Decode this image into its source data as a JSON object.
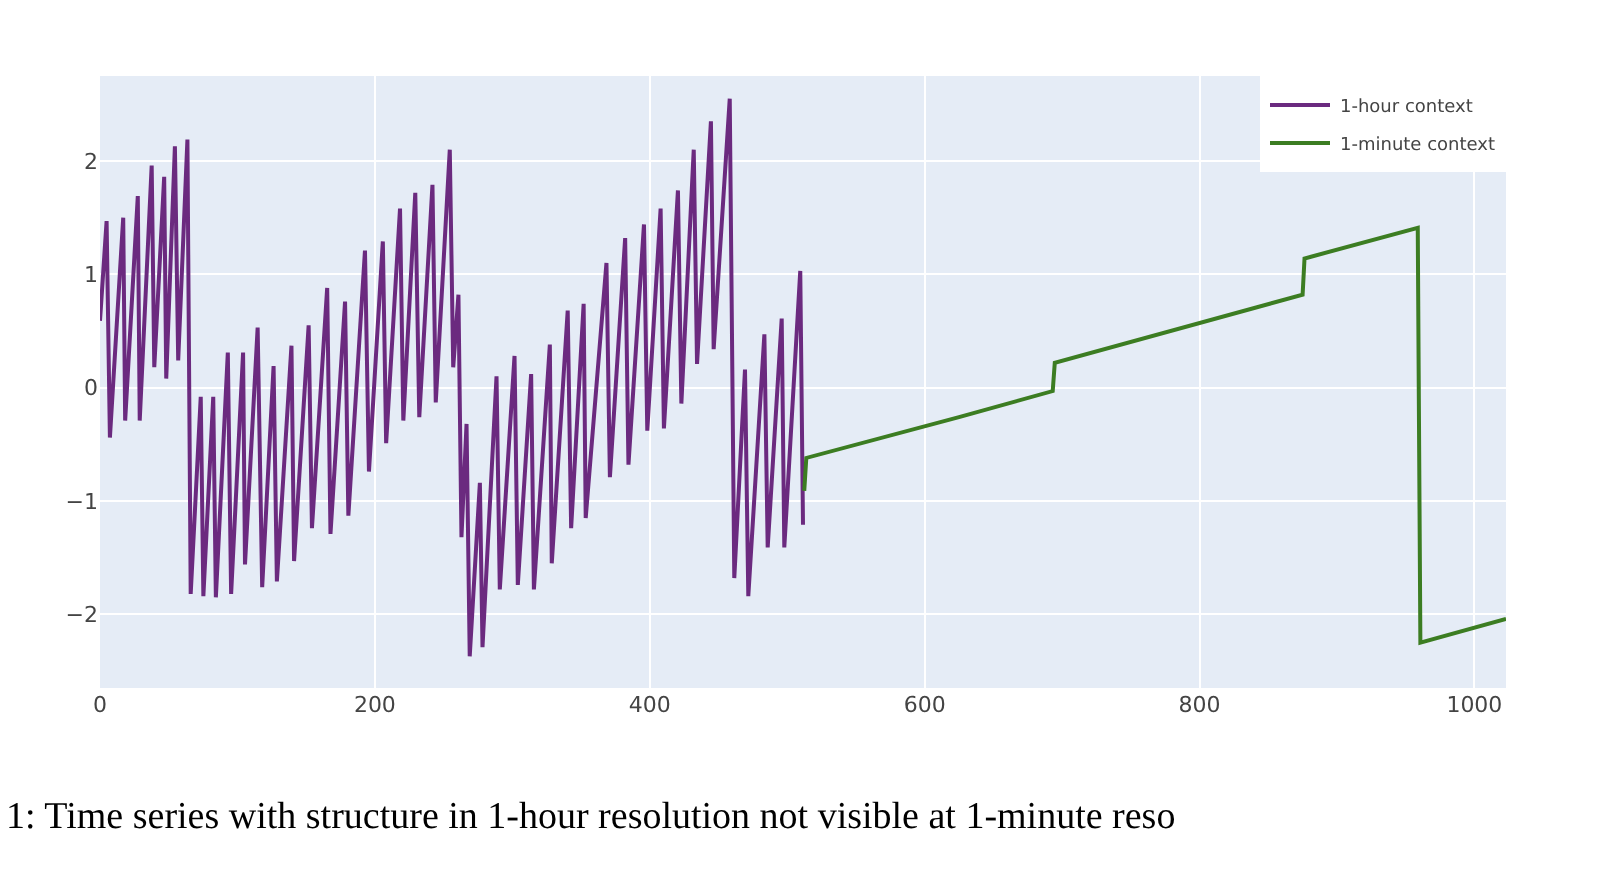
{
  "chart_data": {
    "type": "line",
    "annotations": [
      "1: Time series with structure in 1-hour resolution not visible at 1-minute reso"
    ],
    "series": [
      {
        "name": "1-hour context",
        "color": "#6b2a7f",
        "x": [
          0,
          4.8,
          7.2,
          16.9,
          18.3,
          27.5,
          28.9,
          37.6,
          39.5,
          46.7,
          48.2,
          54.5,
          56.9,
          63.6,
          66,
          73.3,
          75.2,
          82.4,
          84.3,
          93,
          95.4,
          104.1,
          105.5,
          114.7,
          118,
          126.3,
          128.7,
          139.3,
          141.2,
          151.8,
          154.2,
          165.3,
          167.7,
          178.3,
          180.7,
          192.8,
          195.7,
          205.8,
          208.2,
          218.3,
          220.7,
          229.4,
          232.3,
          241.9,
          244.3,
          254.5,
          257,
          260.8,
          263,
          266.7,
          269,
          276.4,
          278.3,
          288.5,
          290.9,
          301.6,
          304,
          313.7,
          315.7,
          327.3,
          328.7,
          340.3,
          342.8,
          351.9,
          353.4,
          368.5,
          371,
          382.1,
          384.5,
          395.8,
          398.2,
          407.9,
          410.3,
          420.5,
          423,
          432,
          434.4,
          444.5,
          446.5,
          458.2,
          461.5,
          469.3,
          471.7,
          483.4,
          485.8,
          496,
          497.9,
          509.5,
          511.5
        ],
        "values": [
          0.59,
          1.47,
          -0.44,
          1.5,
          -0.29,
          1.69,
          -0.29,
          1.96,
          0.18,
          1.86,
          0.08,
          2.13,
          0.24,
          2.19,
          -1.82,
          -0.08,
          -1.84,
          -0.08,
          -1.85,
          0.31,
          -1.82,
          0.31,
          -1.56,
          0.53,
          -1.76,
          0.19,
          -1.71,
          0.37,
          -1.53,
          0.55,
          -1.24,
          0.88,
          -1.29,
          0.76,
          -1.13,
          1.21,
          -0.74,
          1.29,
          -0.49,
          1.58,
          -0.29,
          1.72,
          -0.26,
          1.79,
          -0.13,
          2.1,
          0.18,
          0.82,
          -1.32,
          -0.32,
          -2.37,
          -0.84,
          -2.29,
          0.1,
          -1.78,
          0.28,
          -1.74,
          0.12,
          -1.78,
          0.38,
          -1.55,
          0.68,
          -1.24,
          0.74,
          -1.15,
          1.1,
          -0.79,
          1.32,
          -0.68,
          1.44,
          -0.38,
          1.58,
          -0.36,
          1.74,
          -0.14,
          2.1,
          0.21,
          2.35,
          0.34,
          2.55,
          -1.68,
          0.16,
          -1.84,
          0.47,
          -1.41,
          0.61,
          -1.41,
          1.03,
          -1.21
        ]
      },
      {
        "name": "1-minute context",
        "color": "#3c7d22",
        "x": [
          512.4,
          513.9,
          625,
          693.2,
          694.7,
          875,
          876.4,
          958.8,
          960.7,
          1023
        ],
        "values": [
          -0.91,
          -0.62,
          -0.26,
          -0.03,
          0.22,
          0.82,
          1.14,
          1.41,
          -2.25,
          -2.04
        ]
      }
    ],
    "xlim": [
      0,
      1023
    ],
    "xticks": [
      0,
      200,
      400,
      600,
      800,
      1000
    ],
    "ylim": [
      -2.65,
      2.75
    ],
    "yticks": [
      -2,
      -1,
      0,
      1,
      2
    ],
    "grid": true,
    "legend": "top right",
    "marker": "none",
    "line_style": "solid"
  }
}
